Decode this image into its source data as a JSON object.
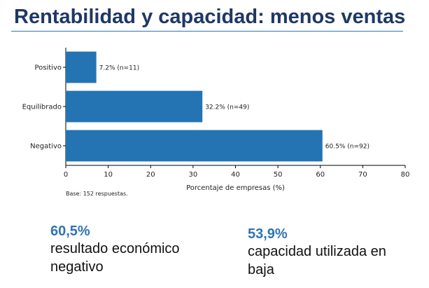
{
  "title": "Rentabilidad y capacidad: menos ventas",
  "accent_color": "#1f3864",
  "bar_color": "#2474b4",
  "stat_color": "#2e75b6",
  "chart_data": {
    "type": "bar",
    "orientation": "horizontal",
    "categories": [
      "Positivo",
      "Equilibrado",
      "Negativo"
    ],
    "values": [
      7.2,
      32.2,
      60.5
    ],
    "data_labels": [
      "7.2%  (n=11)",
      "32.2%  (n=49)",
      "60.5%  (n=92)"
    ],
    "xlabel": "Porcentaje de empresas (%)",
    "xlim": [
      0,
      80
    ],
    "xticks": [
      0,
      10,
      20,
      30,
      40,
      50,
      60,
      70,
      80
    ],
    "note": "Base: 152 respuestas.",
    "grid": false
  },
  "stats": [
    {
      "value": "60,5%",
      "label_lines": [
        "resultado económico",
        "negativo"
      ]
    },
    {
      "value": "53,9%",
      "label_lines": [
        "capacidad utilizada en",
        "baja"
      ]
    }
  ]
}
